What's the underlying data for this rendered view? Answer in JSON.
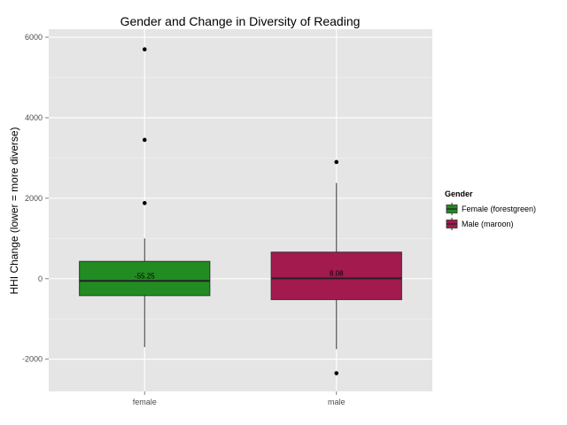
{
  "chart_data": {
    "type": "boxplot",
    "title": "Gender and Change in Diversity of Reading",
    "xlabel": "",
    "ylabel": "HHI Change (lower = more diverse)",
    "categories": [
      "female",
      "male"
    ],
    "ylim": [
      -2800,
      6200
    ],
    "yticks": [
      -2000,
      0,
      2000,
      4000,
      6000
    ],
    "grid": true,
    "legend": {
      "title": "Gender",
      "position": "right",
      "entries": [
        "Female (forestgreen)",
        "Male (maroon)"
      ]
    },
    "boxes": [
      {
        "category": "female",
        "color": "#228b22",
        "whisker_low": -1700,
        "q1": -420,
        "median": -55.25,
        "q3": 430,
        "whisker_high": 1000,
        "outliers": [
          5700,
          3450,
          1880
        ],
        "median_label": "-55.25"
      },
      {
        "category": "male",
        "color": "#a31a4f",
        "whisker_low": -1750,
        "q1": -520,
        "median": 8.08,
        "q3": 660,
        "whisker_high": 2380,
        "outliers": [
          2900,
          -2350
        ],
        "median_label": "8.08"
      }
    ]
  },
  "colors": {
    "panel_bg": "#e5e5e5",
    "grid_major": "#ffffff",
    "grid_minor": "#f2f2f2"
  }
}
